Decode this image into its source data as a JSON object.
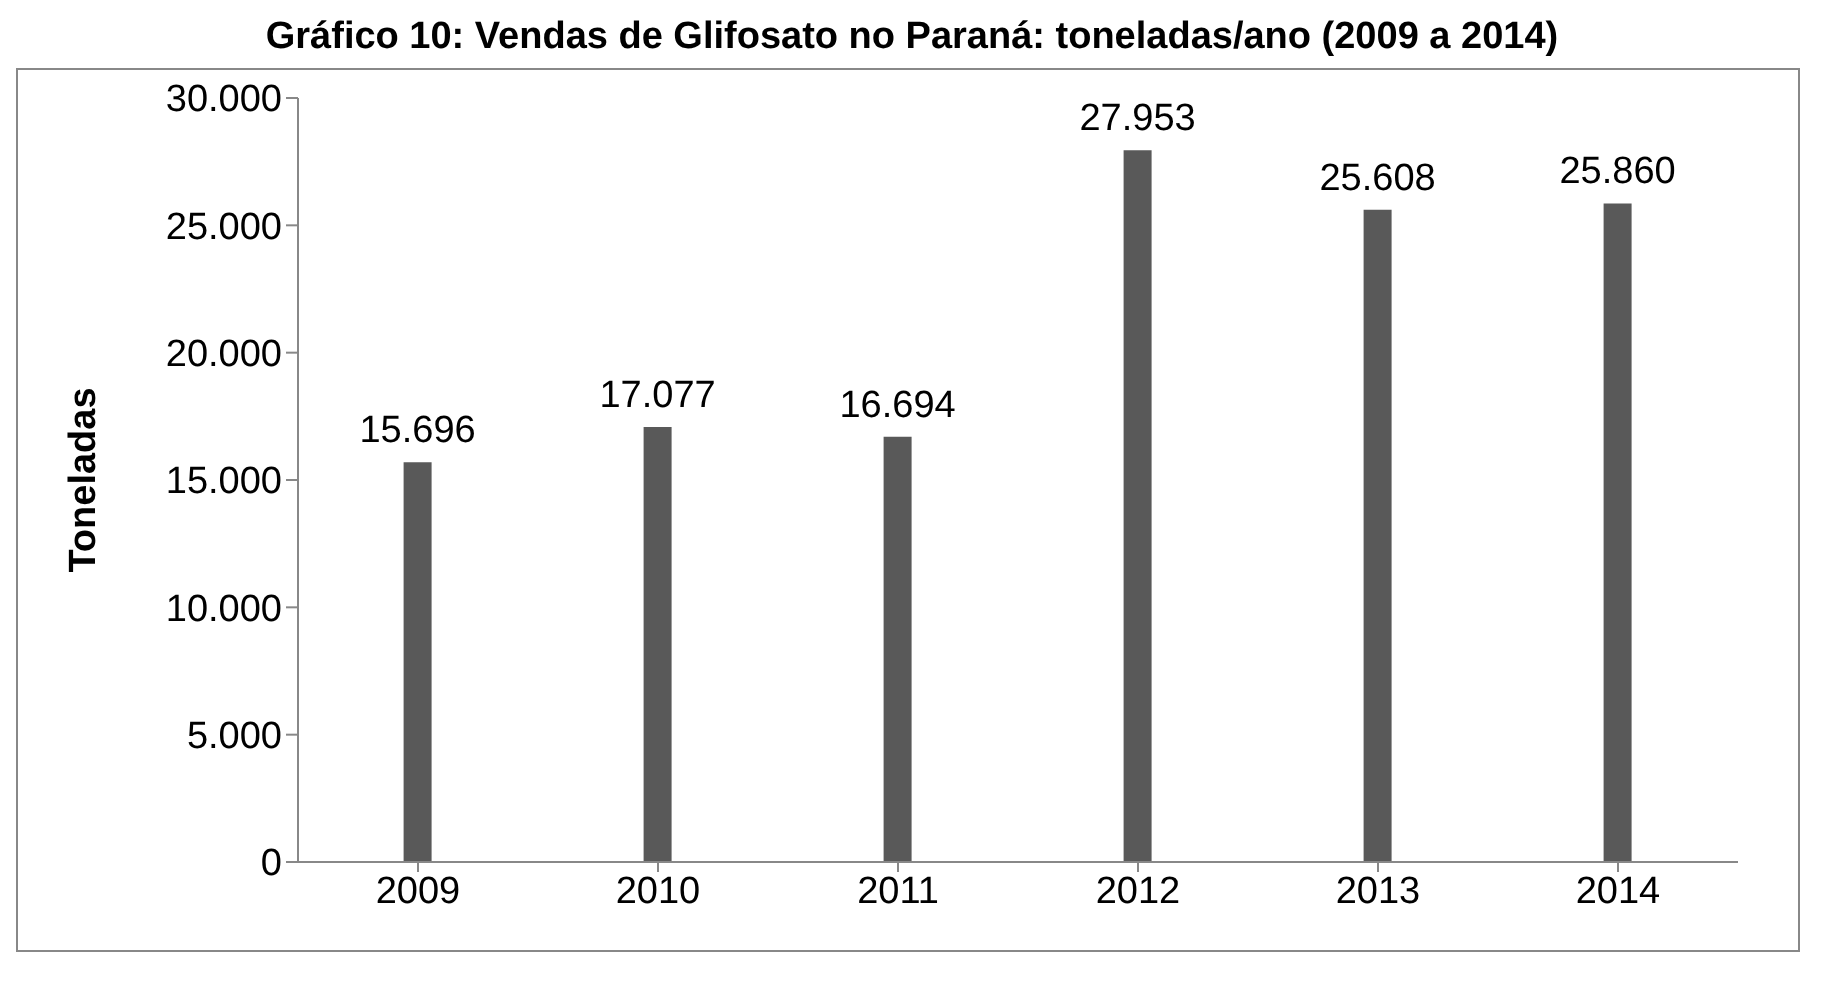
{
  "chart_data": {
    "type": "bar",
    "title": "Gráfico 10: Vendas de Glifosato no Paraná: toneladas/ano (2009 a 2014)",
    "ylabel": "Toneladas",
    "categories": [
      "2009",
      "2010",
      "2011",
      "2012",
      "2013",
      "2014"
    ],
    "values": [
      15696,
      17077,
      16694,
      27953,
      25608,
      25860
    ],
    "value_labels": [
      "15.696",
      "17.077",
      "16.694",
      "27.953",
      "25.608",
      "25.860"
    ],
    "color": "#595959",
    "ylim": [
      0,
      30000
    ],
    "yticks": [
      {
        "value": 0,
        "label": "0"
      },
      {
        "value": 5000,
        "label": "5.000"
      },
      {
        "value": 10000,
        "label": "10.000"
      },
      {
        "value": 15000,
        "label": "15.000"
      },
      {
        "value": 20000,
        "label": "20.000"
      },
      {
        "value": 25000,
        "label": "25.000"
      },
      {
        "value": 30000,
        "label": "30.000"
      }
    ],
    "grid": false,
    "legend": false
  }
}
